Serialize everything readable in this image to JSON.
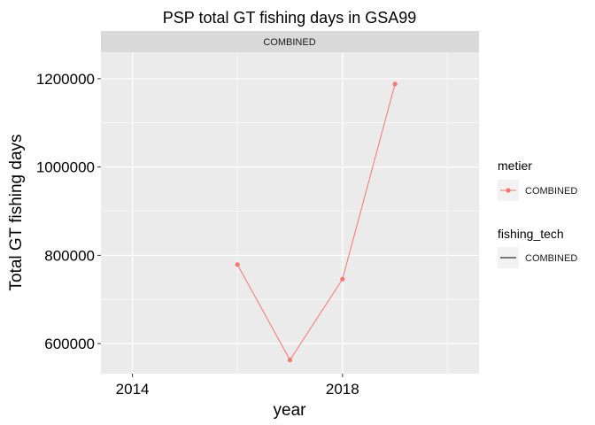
{
  "chart_data": {
    "type": "line",
    "title": "PSP total GT fishing days in GSA99",
    "facet_label": "COMBINED",
    "xlabel": "year",
    "ylabel": "Total GT fishing days",
    "x_ticks": [
      "2014",
      "2018"
    ],
    "y_ticks": [
      "600000",
      "800000",
      "1000000",
      "1200000"
    ],
    "xlim": [
      2013.4,
      2020.6
    ],
    "ylim": [
      532000,
      1260000
    ],
    "grid": true,
    "series": [
      {
        "name": "COMBINED",
        "color": "#F8766D",
        "x": [
          2016,
          2017,
          2018,
          2019
        ],
        "y": [
          779000,
          563000,
          746000,
          1188000
        ]
      }
    ],
    "legend": {
      "placement": "right",
      "groups": [
        {
          "title": "metier",
          "label": "COMBINED",
          "key": "point-line",
          "color": "#F8766D"
        },
        {
          "title": "fishing_tech",
          "label": "COMBINED",
          "key": "line",
          "color": "#000000"
        }
      ]
    }
  }
}
